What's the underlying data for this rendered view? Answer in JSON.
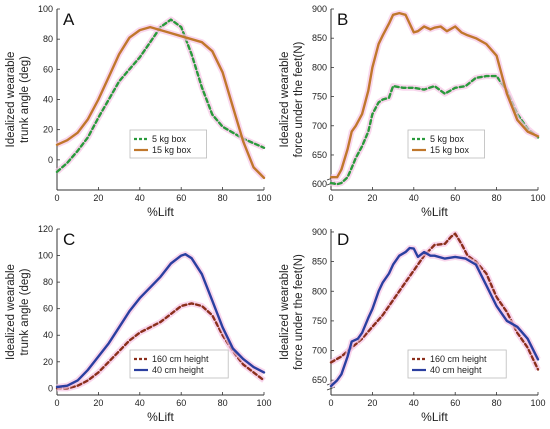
{
  "chart_data": [
    {
      "type": "line",
      "panel": "A",
      "xlabel": "%Lift",
      "ylabel": [
        "Idealized wearable",
        "trunk angle (deg)"
      ],
      "xlim": [
        0,
        100
      ],
      "ylim": [
        -20,
        100
      ],
      "xticks": [
        0,
        20,
        40,
        60,
        80,
        100
      ],
      "yticks": [
        0,
        20,
        40,
        60,
        80,
        100
      ],
      "legend_position": "bottom-right",
      "series": [
        {
          "name": "5 kg box",
          "color": "#2a9a3c",
          "style": "dashed",
          "x": [
            0,
            5,
            10,
            15,
            20,
            25,
            30,
            35,
            40,
            45,
            50,
            55,
            60,
            65,
            70,
            75,
            80,
            85,
            90,
            95,
            100
          ],
          "y": [
            -8,
            -2,
            6,
            15,
            28,
            40,
            52,
            60,
            68,
            78,
            88,
            93,
            88,
            70,
            48,
            30,
            22,
            18,
            14,
            11,
            8
          ]
        },
        {
          "name": "15 kg box",
          "color": "#c0772c",
          "style": "solid",
          "x": [
            0,
            5,
            10,
            15,
            20,
            25,
            30,
            35,
            40,
            45,
            50,
            55,
            60,
            65,
            70,
            75,
            80,
            85,
            90,
            95,
            100
          ],
          "y": [
            10,
            13,
            18,
            27,
            40,
            55,
            70,
            81,
            86,
            88,
            86,
            84,
            82,
            80,
            78,
            72,
            58,
            35,
            12,
            -5,
            -12
          ]
        }
      ]
    },
    {
      "type": "line",
      "panel": "B",
      "xlabel": "%Lift",
      "ylabel": [
        "Idealized wearable",
        "force under the feet(N)"
      ],
      "xlim": [
        0,
        100
      ],
      "ylim": [
        590,
        900
      ],
      "xticks": [
        0,
        20,
        40,
        60,
        80,
        100
      ],
      "yticks": [
        600,
        650,
        700,
        750,
        800,
        850,
        900
      ],
      "legend_position": "bottom-right",
      "series": [
        {
          "name": "5 kg box",
          "color": "#2a9a3c",
          "style": "dashed",
          "x": [
            0,
            3,
            5,
            8,
            10,
            12,
            15,
            18,
            20,
            23,
            25,
            28,
            30,
            35,
            40,
            45,
            50,
            55,
            60,
            65,
            70,
            75,
            80,
            85,
            90,
            95,
            100
          ],
          "y": [
            602,
            600,
            602,
            612,
            628,
            645,
            665,
            690,
            720,
            740,
            745,
            748,
            768,
            765,
            765,
            762,
            768,
            755,
            765,
            768,
            782,
            785,
            785,
            760,
            720,
            695,
            680
          ]
        },
        {
          "name": "15 kg box",
          "color": "#c0772c",
          "style": "solid",
          "x": [
            0,
            3,
            5,
            8,
            10,
            12,
            15,
            18,
            20,
            23,
            25,
            28,
            30,
            33,
            36,
            40,
            42,
            45,
            48,
            50,
            53,
            56,
            60,
            63,
            66,
            70,
            75,
            80,
            85,
            90,
            95,
            100
          ],
          "y": [
            612,
            612,
            625,
            660,
            690,
            700,
            720,
            760,
            800,
            840,
            855,
            875,
            890,
            893,
            890,
            860,
            862,
            870,
            865,
            868,
            870,
            862,
            870,
            860,
            855,
            850,
            840,
            820,
            755,
            710,
            690,
            682
          ]
        }
      ]
    },
    {
      "type": "line",
      "panel": "C",
      "xlabel": "%Lift",
      "ylabel": [
        "Idealized wearable",
        "trunk angle (deg)"
      ],
      "xlim": [
        0,
        100
      ],
      "ylim": [
        -5,
        120
      ],
      "xticks": [
        0,
        20,
        40,
        60,
        80,
        100
      ],
      "yticks": [
        0,
        20,
        40,
        60,
        80,
        100,
        120
      ],
      "legend_position": "bottom-right",
      "series": [
        {
          "name": "160 cm height",
          "color": "#8b2f1c",
          "style": "dashed",
          "x": [
            0,
            5,
            10,
            15,
            20,
            25,
            30,
            35,
            40,
            45,
            50,
            55,
            60,
            65,
            70,
            75,
            80,
            85,
            90,
            95,
            100
          ],
          "y": [
            0,
            0,
            2,
            6,
            12,
            20,
            28,
            36,
            42,
            46,
            50,
            56,
            62,
            64,
            62,
            55,
            40,
            28,
            18,
            12,
            6
          ]
        },
        {
          "name": "40 cm height",
          "color": "#2b3fa0",
          "style": "solid",
          "x": [
            0,
            5,
            10,
            15,
            20,
            25,
            30,
            35,
            40,
            45,
            50,
            55,
            60,
            62,
            65,
            70,
            75,
            80,
            85,
            90,
            95,
            100
          ],
          "y": [
            1,
            2,
            6,
            14,
            24,
            34,
            46,
            58,
            68,
            76,
            84,
            94,
            100,
            101,
            98,
            86,
            66,
            46,
            30,
            22,
            16,
            12
          ]
        }
      ]
    },
    {
      "type": "line",
      "panel": "D",
      "xlabel": "%Lift",
      "ylabel": [
        "Idealized wearable",
        "force under the feet(N)"
      ],
      "xlim": [
        0,
        100
      ],
      "ylim": [
        625,
        905
      ],
      "xticks": [
        0,
        20,
        40,
        60,
        80,
        100
      ],
      "yticks": [
        650,
        700,
        750,
        800,
        850,
        900
      ],
      "legend_position": "bottom-right",
      "series": [
        {
          "name": "160 cm height",
          "color": "#8b2f1c",
          "style": "dashed",
          "x": [
            0,
            5,
            10,
            15,
            20,
            25,
            30,
            35,
            40,
            45,
            50,
            55,
            58,
            60,
            63,
            66,
            70,
            75,
            80,
            85,
            90,
            95,
            100
          ],
          "y": [
            680,
            690,
            705,
            720,
            740,
            760,
            785,
            810,
            835,
            860,
            878,
            880,
            892,
            897,
            880,
            860,
            850,
            830,
            790,
            765,
            730,
            705,
            668
          ]
        },
        {
          "name": "40 cm height",
          "color": "#2b3fa0",
          "style": "solid",
          "x": [
            0,
            3,
            5,
            8,
            10,
            13,
            15,
            18,
            20,
            23,
            25,
            28,
            30,
            33,
            36,
            38,
            40,
            42,
            45,
            48,
            50,
            55,
            60,
            65,
            70,
            75,
            80,
            85,
            90,
            95,
            100
          ],
          "y": [
            640,
            650,
            660,
            690,
            715,
            720,
            730,
            755,
            770,
            800,
            815,
            830,
            845,
            860,
            866,
            873,
            872,
            858,
            866,
            860,
            860,
            855,
            858,
            855,
            845,
            810,
            775,
            750,
            740,
            720,
            685
          ]
        }
      ]
    }
  ]
}
